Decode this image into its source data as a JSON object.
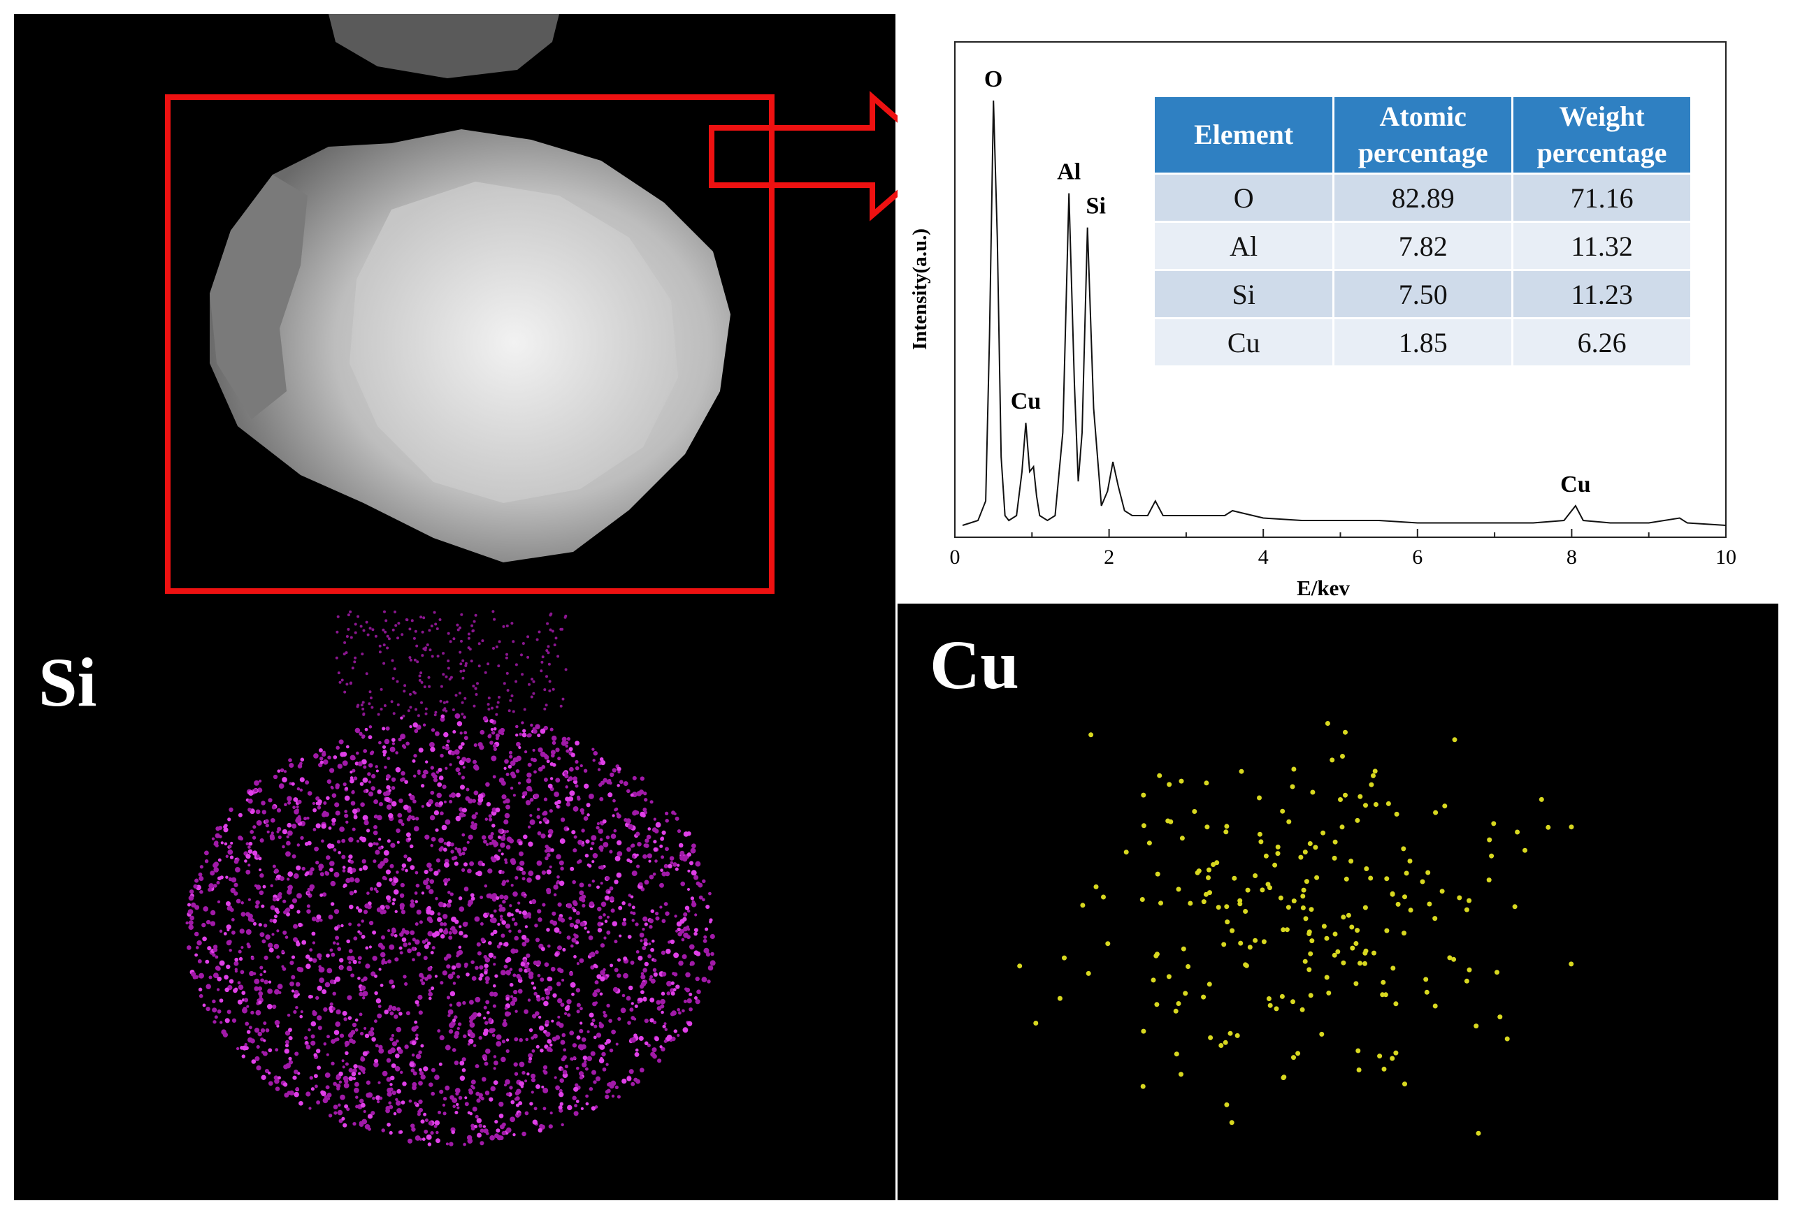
{
  "chart_data": {
    "type": "line",
    "xlabel": "E/kev",
    "ylabel": "Intensity(a.u.)",
    "x": [
      0.1,
      0.2,
      0.3,
      0.4,
      0.45,
      0.5,
      0.55,
      0.6,
      0.65,
      0.7,
      0.8,
      0.87,
      0.92,
      0.97,
      1.02,
      1.06,
      1.1,
      1.2,
      1.3,
      1.4,
      1.48,
      1.55,
      1.6,
      1.65,
      1.72,
      1.8,
      1.9,
      1.98,
      2.05,
      2.12,
      2.2,
      2.3,
      2.5,
      2.6,
      2.7,
      3.0,
      3.5,
      3.6,
      4.0,
      4.5,
      5.0,
      5.5,
      6.0,
      6.5,
      7.0,
      7.5,
      7.9,
      8.05,
      8.15,
      8.5,
      9.0,
      9.4,
      9.5,
      10
    ],
    "values": [
      1,
      1.5,
      2,
      6,
      40,
      88,
      60,
      15,
      3,
      2,
      3,
      12,
      22,
      12,
      13,
      7,
      3,
      2,
      3,
      20,
      69,
      30,
      10,
      20,
      62,
      25,
      5,
      8,
      14,
      9,
      4,
      3,
      3,
      6,
      3,
      3,
      3,
      4,
      2.5,
      2,
      2,
      2,
      1.5,
      1.5,
      1.5,
      1.5,
      2,
      5,
      2,
      1.5,
      1.5,
      2.5,
      1.5,
      1
    ],
    "color": "#111111",
    "xlim": [
      0,
      10
    ],
    "xticks": [
      0,
      2,
      4,
      6,
      8,
      10
    ],
    "ylim": [
      0,
      100
    ],
    "peaks": [
      {
        "label": "O",
        "x": 0.5
      },
      {
        "label": "Cu",
        "x": 0.92
      },
      {
        "label": "Al",
        "x": 1.48
      },
      {
        "label": "Si",
        "x": 1.72
      },
      {
        "label": "Cu",
        "x": 8.05
      }
    ]
  },
  "table": {
    "header": [
      "Element",
      "Atomic percentage",
      "Weight percentage"
    ],
    "rows": [
      [
        "O",
        "82.89",
        "71.16"
      ],
      [
        "Al",
        "7.82",
        "11.32"
      ],
      [
        "Si",
        "7.50",
        "11.23"
      ],
      [
        "Cu",
        "1.85",
        "6.26"
      ]
    ]
  },
  "maps": {
    "si_label": "Si",
    "cu_label": "Cu"
  }
}
